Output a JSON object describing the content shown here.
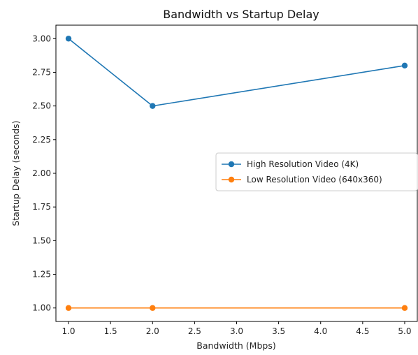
{
  "chart_data": {
    "type": "line",
    "title": "Bandwidth vs Startup Delay",
    "xlabel": "Bandwidth (Mbps)",
    "ylabel": "Startup Delay (seconds)",
    "x": [
      1.0,
      2.0,
      5.0
    ],
    "xlim": [
      0.85,
      5.15
    ],
    "ylim": [
      0.9,
      3.1
    ],
    "xticks": [
      "1.0",
      "1.5",
      "2.0",
      "2.5",
      "3.0",
      "3.5",
      "4.0",
      "4.5",
      "5.0"
    ],
    "yticks": [
      "1.00",
      "1.25",
      "1.50",
      "1.75",
      "2.00",
      "2.25",
      "2.50",
      "2.75",
      "3.00"
    ],
    "grid": false,
    "legend_position": "center-right",
    "series": [
      {
        "name": "High Resolution Video (4K)",
        "values": [
          3.0,
          2.5,
          2.8
        ],
        "color": "#1f77b4",
        "marker": "circle"
      },
      {
        "name": "Low Resolution Video (640x360)",
        "values": [
          1.0,
          1.0,
          1.0
        ],
        "color": "#ff7f0e",
        "marker": "circle"
      }
    ]
  }
}
